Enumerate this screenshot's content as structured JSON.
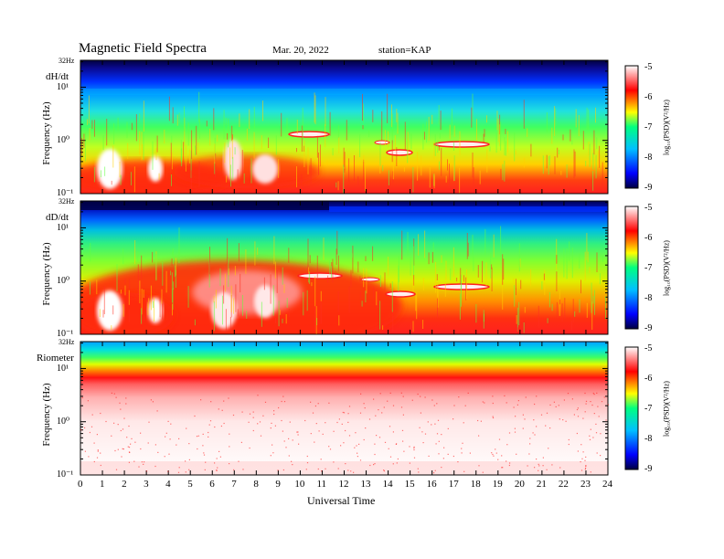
{
  "header": {
    "title": "Magnetic Field Spectra",
    "date": "Mar. 20, 2022",
    "station": "station=KAP"
  },
  "chart_data": [
    {
      "type": "heatmap",
      "panel_label": "dH/dt",
      "ylabel": "Frequency (Hz)",
      "ytop_label": "32Hz",
      "ytick_labels": [
        "10¹",
        "10⁰",
        "10⁻¹"
      ],
      "ylim": [
        0.1,
        32
      ],
      "yscale": "log",
      "colorbar_label": "log₁₀(PSD)(V²/Hz)",
      "colorbar_ticks": [
        "-5",
        "-6",
        "-7",
        "-8",
        "-9"
      ],
      "colorbar_range": [
        -9,
        -5
      ],
      "colors": [
        "#000040",
        "#0000ff",
        "#00c0ff",
        "#00ff80",
        "#ffff00",
        "#ff0000",
        "#ffffff"
      ]
    },
    {
      "type": "heatmap",
      "panel_label": "dD/dt",
      "ylabel": "Frequency (Hz)",
      "ytop_label": "32Hz",
      "ytick_labels": [
        "10¹",
        "10⁰",
        "10⁻¹"
      ],
      "ylim": [
        0.1,
        32
      ],
      "yscale": "log",
      "colorbar_label": "log₁₀(PSD)(V²/Hz)",
      "colorbar_ticks": [
        "-5",
        "-6",
        "-7",
        "-8",
        "-9"
      ],
      "colorbar_range": [
        -9,
        -5
      ],
      "colors": [
        "#000040",
        "#0000ff",
        "#00c0ff",
        "#00ff80",
        "#ffff00",
        "#ff0000",
        "#ffffff"
      ]
    },
    {
      "type": "heatmap",
      "panel_label": "Riometer",
      "ylabel": "Frequency (Hz)",
      "ytop_label": "32Hz",
      "ytick_labels": [
        "10¹",
        "10⁰",
        "10⁻¹"
      ],
      "ylim": [
        0.1,
        32
      ],
      "yscale": "log",
      "colorbar_label": "log₁₀(PSD)(V²/Hz)",
      "colorbar_ticks": [
        "-5",
        "-6",
        "-7",
        "-8",
        "-9"
      ],
      "colorbar_range": [
        -9,
        -5
      ],
      "colors": [
        "#000040",
        "#0000ff",
        "#00c0ff",
        "#00ff80",
        "#ffff00",
        "#ff0000",
        "#ffffff"
      ]
    }
  ],
  "xaxis": {
    "label": "Universal Time",
    "ticks": [
      "0",
      "1",
      "2",
      "3",
      "4",
      "5",
      "6",
      "7",
      "8",
      "9",
      "10",
      "11",
      "12",
      "13",
      "14",
      "15",
      "16",
      "17",
      "18",
      "19",
      "20",
      "21",
      "22",
      "23",
      "24"
    ],
    "xlim": [
      0,
      24
    ]
  }
}
